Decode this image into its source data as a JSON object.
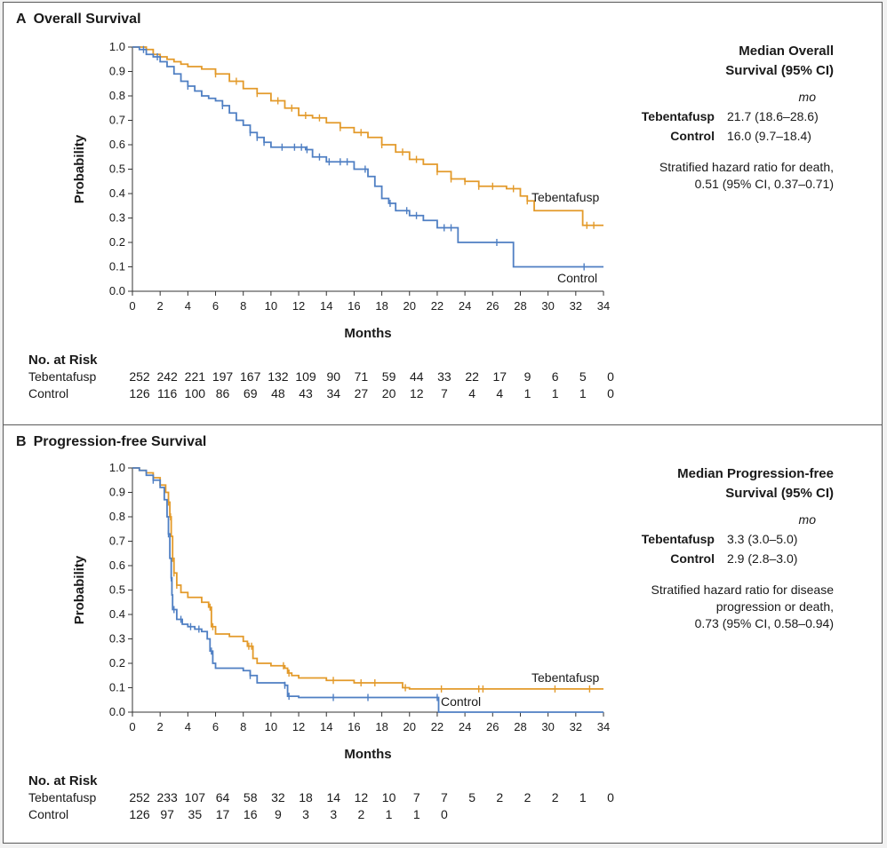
{
  "colors": {
    "tebentafusp": "#e39a2a",
    "control": "#4f7fc3",
    "axis": "#333333",
    "frame": "#5a5a5a"
  },
  "panel_a": {
    "letter": "A",
    "title": "Overall Survival",
    "legend": {
      "title_line1": "Median Overall",
      "title_line2": "Survival (95% CI)",
      "unit": "mo",
      "rows": [
        {
          "name": "Tebentafusp",
          "value": "21.7 (18.6–28.6)"
        },
        {
          "name": "Control",
          "value": "16.0 (9.7–18.4)"
        }
      ],
      "hr_lines": [
        "Stratified hazard ratio for death,",
        "0.51 (95% CI, 0.37–0.71)"
      ]
    },
    "risk": {
      "title": "No. at Risk",
      "rows": [
        {
          "label": "Tebentafusp",
          "values": [
            "252",
            "242",
            "221",
            "197",
            "167",
            "132",
            "109",
            "90",
            "71",
            "59",
            "44",
            "33",
            "22",
            "17",
            "9",
            "6",
            "5",
            "0"
          ]
        },
        {
          "label": "Control",
          "values": [
            "126",
            "116",
            "100",
            "86",
            "69",
            "48",
            "43",
            "34",
            "27",
            "20",
            "12",
            "7",
            "4",
            "4",
            "1",
            "1",
            "1",
            "0"
          ]
        }
      ]
    }
  },
  "panel_b": {
    "letter": "B",
    "title": "Progression-free Survival",
    "legend": {
      "title_line1": "Median Progression-free",
      "title_line2": "Survival (95% CI)",
      "unit": "mo",
      "rows": [
        {
          "name": "Tebentafusp",
          "value": "3.3 (3.0–5.0)"
        },
        {
          "name": "Control",
          "value": "2.9 (2.8–3.0)"
        }
      ],
      "hr_lines": [
        "Stratified hazard ratio for disease",
        "progression or death,",
        "0.73 (95% CI, 0.58–0.94)"
      ]
    },
    "risk": {
      "title": "No. at Risk",
      "rows": [
        {
          "label": "Tebentafusp",
          "values": [
            "252",
            "233",
            "107",
            "64",
            "58",
            "32",
            "18",
            "14",
            "12",
            "10",
            "7",
            "7",
            "5",
            "2",
            "2",
            "2",
            "1",
            "0"
          ]
        },
        {
          "label": "Control",
          "values": [
            "126",
            "97",
            "35",
            "17",
            "16",
            "9",
            "3",
            "3",
            "2",
            "1",
            "1",
            "0"
          ]
        }
      ]
    }
  },
  "chart_data": [
    {
      "type": "line",
      "title": "Overall Survival",
      "xlabel": "Months",
      "ylabel": "Probability",
      "xlim": [
        0,
        34
      ],
      "ylim": [
        0,
        1.0
      ],
      "xticks": [
        0,
        2,
        4,
        6,
        8,
        10,
        12,
        14,
        16,
        18,
        20,
        22,
        24,
        26,
        28,
        30,
        32,
        34
      ],
      "xtick_labels": [
        "0",
        "2",
        "4",
        "6",
        "8",
        "10",
        "12",
        "14",
        "16",
        "18",
        "20",
        "22",
        "24",
        "26",
        "28",
        "30",
        "32",
        "34"
      ],
      "yticks": [
        0,
        0.1,
        0.2,
        0.3,
        0.4,
        0.5,
        0.6,
        0.7,
        0.8,
        0.9,
        1.0
      ],
      "ytick_labels": [
        "0.0",
        "0.1",
        "0.2",
        "0.3",
        "0.4",
        "0.5",
        "0.6",
        "0.7",
        "0.8",
        "0.9",
        "1.0"
      ],
      "series": [
        {
          "name": "Tebentafusp",
          "label": "Tebentafusp",
          "x": [
            0,
            1,
            1.5,
            2,
            2.5,
            3,
            3.5,
            4,
            5,
            6,
            7,
            8,
            9,
            10,
            11,
            12,
            13,
            14,
            15,
            16,
            17,
            18,
            19,
            20,
            21,
            22,
            23,
            24,
            25,
            26,
            27,
            28,
            28.5,
            29,
            30,
            31,
            32,
            32.5,
            33,
            34
          ],
          "y": [
            1.0,
            0.99,
            0.97,
            0.96,
            0.95,
            0.94,
            0.93,
            0.92,
            0.91,
            0.89,
            0.86,
            0.83,
            0.81,
            0.78,
            0.75,
            0.72,
            0.71,
            0.69,
            0.67,
            0.65,
            0.63,
            0.6,
            0.57,
            0.54,
            0.52,
            0.49,
            0.46,
            0.45,
            0.43,
            0.43,
            0.42,
            0.39,
            0.37,
            0.33,
            0.33,
            0.33,
            0.33,
            0.27,
            0.27,
            0.27
          ],
          "censor_x": [
            6,
            7.5,
            9,
            10.5,
            11.5,
            12.5,
            13.5,
            15,
            16.5,
            18,
            19.5,
            20.5,
            22,
            23,
            24,
            25,
            26,
            27.5,
            28.5,
            32.8,
            33.3
          ]
        },
        {
          "name": "Control",
          "label": "Control",
          "x": [
            0,
            0.5,
            1,
            1.5,
            2,
            2.5,
            3,
            3.5,
            4,
            4.5,
            5,
            5.5,
            6,
            6.5,
            7,
            7.5,
            8,
            8.5,
            9,
            9.5,
            10,
            12.5,
            13,
            14,
            15,
            16,
            17,
            17.5,
            18,
            18.5,
            19,
            20,
            21,
            22,
            23,
            23.5,
            25,
            26,
            27,
            27.5,
            30,
            33,
            34
          ],
          "y": [
            1.0,
            0.99,
            0.97,
            0.96,
            0.94,
            0.92,
            0.89,
            0.86,
            0.84,
            0.82,
            0.8,
            0.79,
            0.78,
            0.76,
            0.73,
            0.7,
            0.68,
            0.65,
            0.63,
            0.61,
            0.59,
            0.58,
            0.55,
            0.53,
            0.53,
            0.5,
            0.47,
            0.43,
            0.38,
            0.36,
            0.33,
            0.31,
            0.29,
            0.26,
            0.26,
            0.2,
            0.2,
            0.2,
            0.2,
            0.1,
            0.1,
            0.1,
            0.1
          ],
          "censor_x": [
            0.8,
            1.8,
            4,
            6.5,
            8.5,
            9,
            9.5,
            10.8,
            11.7,
            12.2,
            12.6,
            13.5,
            14.2,
            15,
            15.5,
            16.8,
            18.6,
            19.8,
            20.5,
            22.5,
            23,
            26.3,
            32.6
          ]
        }
      ]
    },
    {
      "type": "line",
      "title": "Progression-free Survival",
      "xlabel": "Months",
      "ylabel": "Probability",
      "xlim": [
        0,
        34
      ],
      "ylim": [
        0,
        1.0
      ],
      "xticks": [
        0,
        2,
        4,
        6,
        8,
        10,
        12,
        14,
        16,
        18,
        20,
        22,
        24,
        26,
        28,
        30,
        32,
        34
      ],
      "xtick_labels": [
        "0",
        "2",
        "4",
        "6",
        "8",
        "10",
        "12",
        "14",
        "16",
        "18",
        "20",
        "22",
        "24",
        "26",
        "28",
        "30",
        "32",
        "34"
      ],
      "yticks": [
        0,
        0.1,
        0.2,
        0.3,
        0.4,
        0.5,
        0.6,
        0.7,
        0.8,
        0.9,
        1.0
      ],
      "ytick_labels": [
        "0.0",
        "0.1",
        "0.2",
        "0.3",
        "0.4",
        "0.5",
        "0.6",
        "0.7",
        "0.8",
        "0.9",
        "1.0"
      ],
      "series": [
        {
          "name": "Tebentafusp",
          "label": "Tebentafusp",
          "x": [
            0,
            0.5,
            1,
            1.5,
            2,
            2.4,
            2.6,
            2.7,
            2.8,
            2.9,
            3.0,
            3.2,
            3.5,
            4,
            5,
            5.5,
            5.7,
            6,
            7,
            8,
            8.3,
            8.7,
            9,
            10,
            11,
            11.2,
            11.5,
            12,
            14,
            16,
            18,
            19.5,
            20,
            22,
            25,
            30,
            34
          ],
          "y": [
            1.0,
            0.99,
            0.98,
            0.96,
            0.93,
            0.9,
            0.86,
            0.8,
            0.72,
            0.63,
            0.57,
            0.52,
            0.49,
            0.47,
            0.45,
            0.43,
            0.35,
            0.32,
            0.31,
            0.29,
            0.27,
            0.22,
            0.2,
            0.19,
            0.18,
            0.16,
            0.15,
            0.14,
            0.13,
            0.12,
            0.12,
            0.1,
            0.095,
            0.095,
            0.095,
            0.095,
            0.095
          ],
          "censor_x": [
            2.6,
            2.75,
            2.9,
            3.0,
            3.2,
            5.6,
            5.8,
            8.4,
            8.6,
            10.9,
            11.3,
            14.5,
            16.5,
            17.5,
            19.7,
            22.3,
            25,
            25.3,
            30.5,
            33
          ]
        },
        {
          "name": "Control",
          "label": "Control",
          "x": [
            0,
            0.5,
            1,
            1.5,
            2,
            2.3,
            2.5,
            2.6,
            2.7,
            2.8,
            2.85,
            2.9,
            3.2,
            3.6,
            4,
            4.5,
            5,
            5.4,
            5.6,
            5.8,
            6,
            7,
            8,
            8.5,
            9,
            10,
            11,
            11.2,
            12,
            14,
            16,
            18,
            20,
            22,
            22.1,
            34
          ],
          "y": [
            1.0,
            0.99,
            0.97,
            0.95,
            0.92,
            0.87,
            0.8,
            0.73,
            0.63,
            0.55,
            0.48,
            0.42,
            0.38,
            0.36,
            0.35,
            0.34,
            0.33,
            0.3,
            0.25,
            0.2,
            0.18,
            0.18,
            0.17,
            0.15,
            0.12,
            0.12,
            0.11,
            0.065,
            0.06,
            0.06,
            0.06,
            0.06,
            0.06,
            0.06,
            0.0,
            0.0
          ],
          "censor_x": [
            1.5,
            2.6,
            2.8,
            3.0,
            3.5,
            4.2,
            4.8,
            5.7,
            8.5,
            11,
            11.3,
            14.5,
            17,
            22
          ]
        }
      ]
    }
  ]
}
